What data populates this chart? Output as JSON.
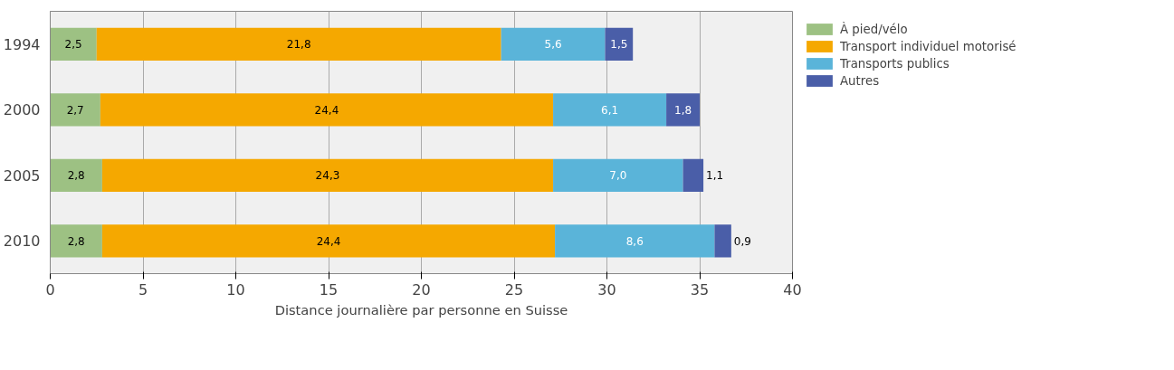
{
  "chart_data": {
    "type": "bar",
    "orientation": "horizontal",
    "stacked": true,
    "categories": [
      "1994",
      "2000",
      "2005",
      "2010"
    ],
    "series": [
      {
        "name": "À pied/vélo",
        "color": "#9dc183",
        "values": [
          2.5,
          2.7,
          2.8,
          2.8
        ],
        "value_labels": [
          "2,5",
          "2,7",
          "2,8",
          "2,8"
        ]
      },
      {
        "name": "Transport individuel motorisé",
        "color": "#f5a800",
        "values": [
          21.8,
          24.4,
          24.3,
          24.4
        ],
        "value_labels": [
          "21,8",
          "24,4",
          "24,3",
          "24,4"
        ]
      },
      {
        "name": "Transports publics",
        "color": "#5ab4d9",
        "values": [
          5.6,
          6.1,
          7.0,
          8.6
        ],
        "value_labels": [
          "5,6",
          "6,1",
          "7,0",
          "8,6"
        ]
      },
      {
        "name": "Autres",
        "color": "#4a5ea8",
        "values": [
          1.5,
          1.8,
          1.1,
          0.9
        ],
        "value_labels": [
          "1,5",
          "1,8",
          "1,1",
          "0,9"
        ]
      }
    ],
    "xlabel": "Distance journalière par personne en Suisse",
    "xlim": [
      0,
      40
    ],
    "xticks": [
      0,
      5,
      10,
      15,
      20,
      25,
      30,
      35,
      40
    ],
    "grid": "x",
    "legend": "top right"
  }
}
